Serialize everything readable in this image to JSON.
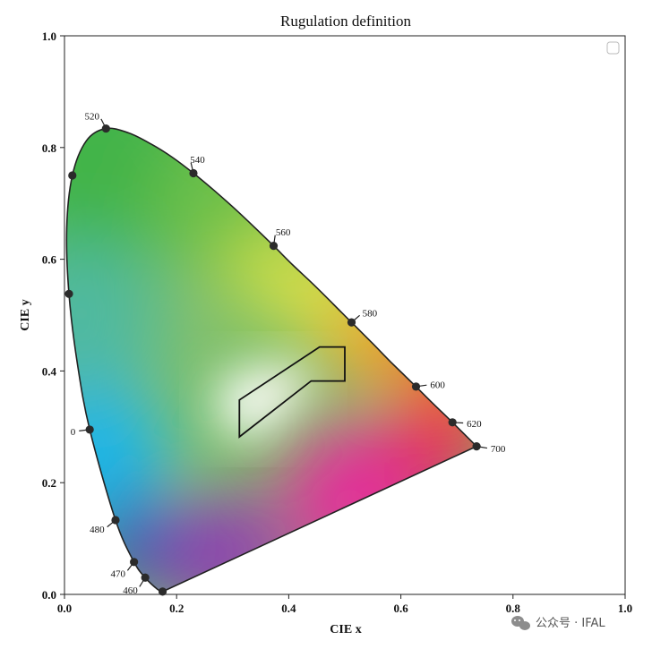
{
  "chart_data": {
    "type": "scatter",
    "title": "Rugulation definition",
    "xlabel": "CIE x",
    "ylabel": "CIE y",
    "xlim": [
      0.0,
      1.0
    ],
    "ylim": [
      0.0,
      1.0
    ],
    "xticks": [
      "0.0",
      "0.2",
      "0.4",
      "0.6",
      "0.8",
      "1.0"
    ],
    "yticks": [
      "0.0",
      "0.2",
      "0.4",
      "0.6",
      "0.8",
      "1.0"
    ],
    "grid": false,
    "legend": "top-right",
    "spectral_locus": [
      [
        0.175,
        0.005
      ],
      [
        0.166,
        0.009
      ],
      [
        0.144,
        0.03
      ],
      [
        0.124,
        0.058
      ],
      [
        0.091,
        0.133
      ],
      [
        0.045,
        0.295
      ],
      [
        0.023,
        0.413
      ],
      [
        0.008,
        0.538
      ],
      [
        0.004,
        0.655
      ],
      [
        0.014,
        0.75
      ],
      [
        0.039,
        0.812
      ],
      [
        0.074,
        0.834
      ],
      [
        0.115,
        0.826
      ],
      [
        0.155,
        0.806
      ],
      [
        0.193,
        0.782
      ],
      [
        0.23,
        0.754
      ],
      [
        0.266,
        0.724
      ],
      [
        0.302,
        0.692
      ],
      [
        0.337,
        0.659
      ],
      [
        0.373,
        0.624
      ],
      [
        0.408,
        0.589
      ],
      [
        0.444,
        0.555
      ],
      [
        0.479,
        0.52
      ],
      [
        0.512,
        0.487
      ],
      [
        0.548,
        0.451
      ],
      [
        0.582,
        0.416
      ],
      [
        0.627,
        0.372
      ],
      [
        0.658,
        0.341
      ],
      [
        0.692,
        0.308
      ],
      [
        0.735,
        0.265
      ]
    ],
    "wavelength_markers": [
      {
        "label": "460",
        "x": 0.144,
        "y": 0.03
      },
      {
        "label": "470",
        "x": 0.124,
        "y": 0.058
      },
      {
        "label": "480",
        "x": 0.091,
        "y": 0.133
      },
      {
        "label": "0",
        "x": 0.045,
        "y": 0.295
      },
      {
        "label": "",
        "x": 0.008,
        "y": 0.538
      },
      {
        "label": "",
        "x": 0.014,
        "y": 0.75
      },
      {
        "label": "520",
        "x": 0.074,
        "y": 0.834
      },
      {
        "label": "540",
        "x": 0.23,
        "y": 0.754
      },
      {
        "label": "560",
        "x": 0.373,
        "y": 0.624
      },
      {
        "label": "580",
        "x": 0.512,
        "y": 0.487
      },
      {
        "label": "600",
        "x": 0.627,
        "y": 0.372
      },
      {
        "label": "620",
        "x": 0.692,
        "y": 0.308
      },
      {
        "label": "700",
        "x": 0.735,
        "y": 0.265
      },
      {
        "label": "",
        "x": 0.175,
        "y": 0.005
      }
    ],
    "region_polygon": [
      [
        0.312,
        0.282
      ],
      [
        0.312,
        0.348
      ],
      [
        0.455,
        0.443
      ],
      [
        0.5,
        0.443
      ],
      [
        0.5,
        0.382
      ],
      [
        0.44,
        0.382
      ],
      [
        0.312,
        0.282
      ]
    ],
    "colors": {
      "locus": "#222222",
      "region": "#111111",
      "marker": "#2b2b2b"
    }
  },
  "watermark": "公众号 · IFAL"
}
